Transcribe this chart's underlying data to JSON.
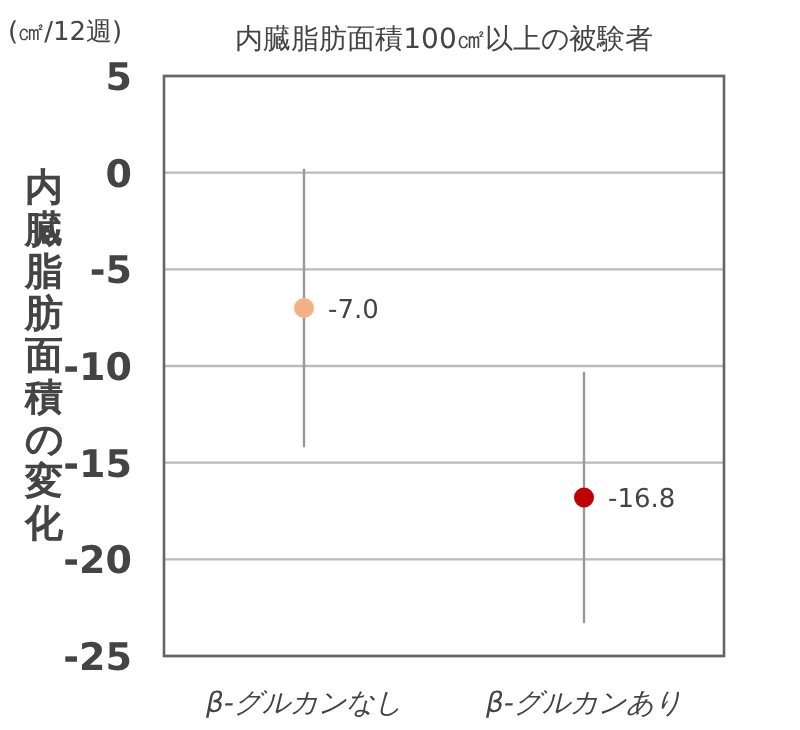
{
  "chart_data": {
    "type": "scatter",
    "title": "内臓脂肪面積100㎠以上の被験者",
    "ylabel": "内臓脂肪面積の変化",
    "annotations": [
      "(㎠/12週)"
    ],
    "categories": [
      "β-グルカンなし",
      "β-グルカンあり"
    ],
    "values": [
      -7.0,
      -16.8
    ],
    "errors": [
      7.2,
      6.5
    ],
    "colors": [
      "#f5b183",
      "#c00000"
    ],
    "value_labels": [
      "-7.0",
      "-16.8"
    ],
    "ylim": [
      -25,
      5
    ],
    "yticks": [
      5,
      0,
      -5,
      -10,
      -15,
      -20,
      -25
    ],
    "grid": "y",
    "marker": "circle"
  }
}
